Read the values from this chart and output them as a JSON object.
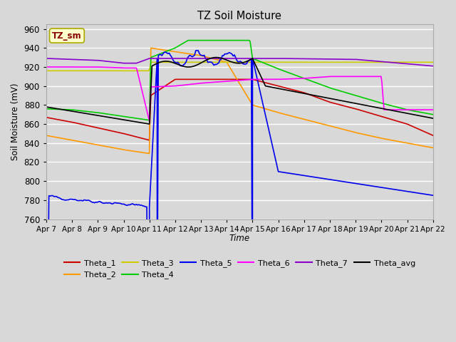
{
  "title": "TZ Soil Moisture",
  "xlabel": "Time",
  "ylabel": "Soil Moisture (mV)",
  "ylim": [
    760,
    965
  ],
  "yticks": [
    760,
    780,
    800,
    820,
    840,
    860,
    880,
    900,
    920,
    940,
    960
  ],
  "x_tick_labels": [
    "Apr 7",
    "Apr 8",
    "Apr 9",
    "Apr 10",
    "Apr 11",
    "Apr 12",
    "Apr 13",
    "Apr 14",
    "Apr 15",
    "Apr 16",
    "Apr 17",
    "Apr 18",
    "Apr 19",
    "Apr 20",
    "Apr 21",
    "Apr 22"
  ],
  "bg_color": "#d8d8d8",
  "plot_bg_color": "#d8d8d8",
  "grid_color": "#ffffff",
  "label_box_color": "#ffffcc",
  "label_box_text": "TZ_sm",
  "label_box_text_color": "#880000",
  "colors": {
    "Theta_1": "#cc0000",
    "Theta_2": "#ff9900",
    "Theta_3": "#cccc00",
    "Theta_4": "#00cc00",
    "Theta_5": "#0000ee",
    "Theta_6": "#ff00ff",
    "Theta_7": "#8800cc",
    "Theta_avg": "#000000"
  }
}
